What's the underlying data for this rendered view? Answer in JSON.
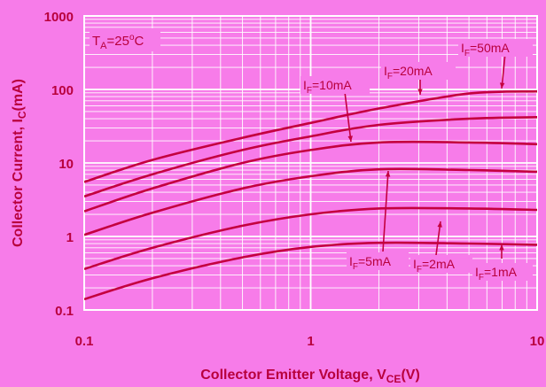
{
  "colors": {
    "background": "#f77ce9",
    "plot_background": "#f77ce9",
    "grid": "#ffffff",
    "curve": "#c4003f",
    "text": "#b8003c"
  },
  "chart_data": {
    "type": "line",
    "x_scale": "log",
    "y_scale": "log",
    "xlim": [
      0.1,
      10
    ],
    "ylim": [
      0.1,
      1000
    ],
    "grid": true,
    "x_ticks": [
      "0.1",
      "1",
      "10"
    ],
    "y_ticks": [
      "0.1",
      "1",
      "10",
      "100",
      "1000"
    ],
    "xlabel_main": "Collector Emitter Voltage, V",
    "xlabel_sub": "CE",
    "xlabel_tail": "(V)",
    "ylabel_main": "Collector Current, I",
    "ylabel_sub": "C",
    "ylabel_tail": "(mA)",
    "condition": {
      "main": "T",
      "sub": "A",
      "tail": "=25",
      "sup": "o",
      "unit": "C"
    },
    "series": [
      {
        "name": "IF=50mA",
        "label_main": "I",
        "label_sub": "F",
        "label_tail": "=50mA",
        "x": [
          0.1,
          0.2,
          0.5,
          1,
          2,
          5,
          10
        ],
        "y": [
          5.5,
          11,
          22,
          35,
          55,
          88,
          94
        ]
      },
      {
        "name": "IF=20mA",
        "label_main": "I",
        "label_sub": "F",
        "label_tail": "=20mA",
        "x": [
          0.1,
          0.2,
          0.5,
          1,
          2,
          5,
          10
        ],
        "y": [
          3.5,
          7,
          15,
          23,
          33,
          40,
          42
        ]
      },
      {
        "name": "IF=10mA",
        "label_main": "I",
        "label_sub": "F",
        "label_tail": "=10mA",
        "x": [
          0.1,
          0.2,
          0.5,
          1,
          2,
          5,
          10
        ],
        "y": [
          2.2,
          4.5,
          10,
          15,
          19,
          19,
          18
        ]
      },
      {
        "name": "IF=5mA",
        "label_main": "I",
        "label_sub": "F",
        "label_tail": "=5mA",
        "x": [
          0.1,
          0.2,
          0.5,
          1,
          2,
          5,
          10
        ],
        "y": [
          1.05,
          2.1,
          4.5,
          6.6,
          8.2,
          8,
          7.6
        ]
      },
      {
        "name": "IF=2mA",
        "label_main": "I",
        "label_sub": "F",
        "label_tail": "=2mA",
        "x": [
          0.1,
          0.2,
          0.5,
          1,
          2,
          5,
          10
        ],
        "y": [
          0.36,
          0.7,
          1.4,
          2.0,
          2.4,
          2.4,
          2.3
        ]
      },
      {
        "name": "IF=1mA",
        "label_main": "I",
        "label_sub": "F",
        "label_tail": "=1mA",
        "x": [
          0.1,
          0.2,
          0.5,
          1,
          2,
          5,
          10
        ],
        "y": [
          0.14,
          0.27,
          0.52,
          0.72,
          0.82,
          0.8,
          0.77
        ]
      }
    ]
  }
}
